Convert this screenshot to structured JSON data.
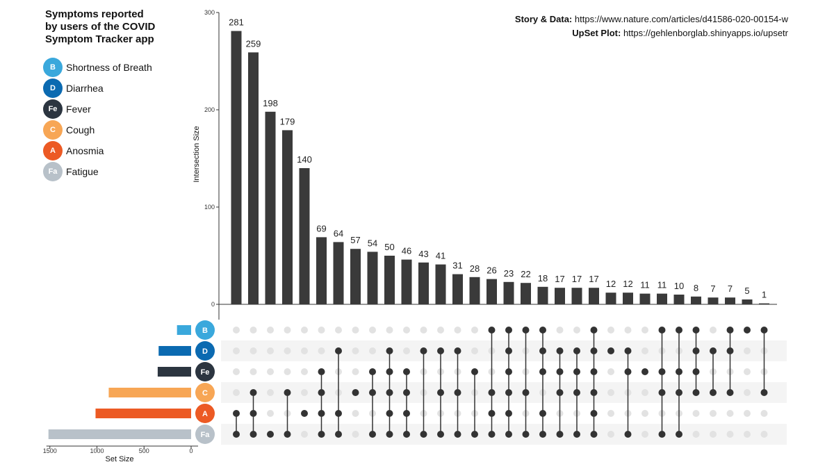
{
  "title": {
    "lines": [
      "Symptoms reported",
      "by users of the COVID",
      "Symptom Tracker app"
    ]
  },
  "credits": {
    "story_label": "Story & Data:",
    "story_url": "https://www.nature.com/articles/d41586-020-00154-w",
    "upset_label": "UpSet Plot:",
    "upset_url": "https://gehlenborglab.shinyapps.io/upsetr"
  },
  "legend": [
    {
      "abbr": "B",
      "name": "Shortness of Breath",
      "color": "#3aa8dc"
    },
    {
      "abbr": "D",
      "name": "Diarrhea",
      "color": "#0b6ab1"
    },
    {
      "abbr": "Fe",
      "name": "Fever",
      "color": "#2c3540"
    },
    {
      "abbr": "C",
      "name": "Cough",
      "color": "#f7a655"
    },
    {
      "abbr": "A",
      "name": "Anosmia",
      "color": "#ec5a24"
    },
    {
      "abbr": "Fa",
      "name": "Fatigue",
      "color": "#b8c1c9"
    }
  ],
  "chart_data": {
    "type": "bar",
    "ylabel": "Intersection Size",
    "ylim": [
      0,
      300
    ],
    "yticks": [
      0,
      100,
      200,
      300
    ],
    "bar_color": "#3a3a3a",
    "dot_inactive_color": "#e2e2e2",
    "sets": [
      "B",
      "D",
      "Fe",
      "C",
      "A",
      "Fa"
    ],
    "intersections": [
      {
        "value": 281,
        "members": [
          "A",
          "Fa"
        ]
      },
      {
        "value": 259,
        "members": [
          "C",
          "A",
          "Fa"
        ]
      },
      {
        "value": 198,
        "members": [
          "Fa"
        ]
      },
      {
        "value": 179,
        "members": [
          "C",
          "Fa"
        ]
      },
      {
        "value": 140,
        "members": [
          "A"
        ]
      },
      {
        "value": 69,
        "members": [
          "Fe",
          "C",
          "A",
          "Fa"
        ]
      },
      {
        "value": 64,
        "members": [
          "D",
          "A",
          "Fa"
        ]
      },
      {
        "value": 57,
        "members": [
          "C"
        ]
      },
      {
        "value": 54,
        "members": [
          "Fe",
          "C",
          "Fa"
        ]
      },
      {
        "value": 50,
        "members": [
          "D",
          "Fe",
          "C",
          "A",
          "Fa"
        ]
      },
      {
        "value": 46,
        "members": [
          "Fe",
          "C",
          "A",
          "Fa"
        ]
      },
      {
        "value": 43,
        "members": [
          "D",
          "Fa"
        ]
      },
      {
        "value": 41,
        "members": [
          "D",
          "C",
          "Fa"
        ]
      },
      {
        "value": 31,
        "members": [
          "D",
          "C",
          "Fa"
        ]
      },
      {
        "value": 28,
        "members": [
          "Fe",
          "Fa"
        ]
      },
      {
        "value": 26,
        "members": [
          "B",
          "C",
          "A",
          "Fa"
        ]
      },
      {
        "value": 23,
        "members": [
          "B",
          "D",
          "Fe",
          "C",
          "A",
          "Fa"
        ]
      },
      {
        "value": 22,
        "members": [
          "B",
          "C",
          "Fa"
        ]
      },
      {
        "value": 18,
        "members": [
          "B",
          "D",
          "Fe",
          "A",
          "Fa"
        ]
      },
      {
        "value": 17,
        "members": [
          "D",
          "Fe",
          "C",
          "Fa"
        ]
      },
      {
        "value": 17,
        "members": [
          "D",
          "Fe",
          "C",
          "Fa"
        ]
      },
      {
        "value": 17,
        "members": [
          "B",
          "D",
          "Fe",
          "C",
          "A",
          "Fa"
        ]
      },
      {
        "value": 12,
        "members": [
          "D"
        ]
      },
      {
        "value": 12,
        "members": [
          "D",
          "Fe",
          "Fa"
        ]
      },
      {
        "value": 11,
        "members": [
          "Fe"
        ]
      },
      {
        "value": 11,
        "members": [
          "B",
          "Fe",
          "C",
          "Fa"
        ]
      },
      {
        "value": 10,
        "members": [
          "B",
          "Fe",
          "C",
          "Fa"
        ]
      },
      {
        "value": 8,
        "members": [
          "B",
          "D",
          "Fe",
          "C"
        ]
      },
      {
        "value": 7,
        "members": [
          "D",
          "C"
        ]
      },
      {
        "value": 7,
        "members": [
          "B",
          "D",
          "C"
        ]
      },
      {
        "value": 5,
        "members": [
          "B"
        ]
      },
      {
        "value": 1,
        "members": [
          "B",
          "C"
        ]
      }
    ],
    "set_sizes": {
      "title": "Set Size",
      "xticks": [
        1500,
        1000,
        500,
        0
      ],
      "values": [
        {
          "set": "B",
          "value": 150
        },
        {
          "set": "D",
          "value": 345
        },
        {
          "set": "Fe",
          "value": 355
        },
        {
          "set": "C",
          "value": 875
        },
        {
          "set": "A",
          "value": 1015
        },
        {
          "set": "Fa",
          "value": 1515
        }
      ]
    }
  }
}
